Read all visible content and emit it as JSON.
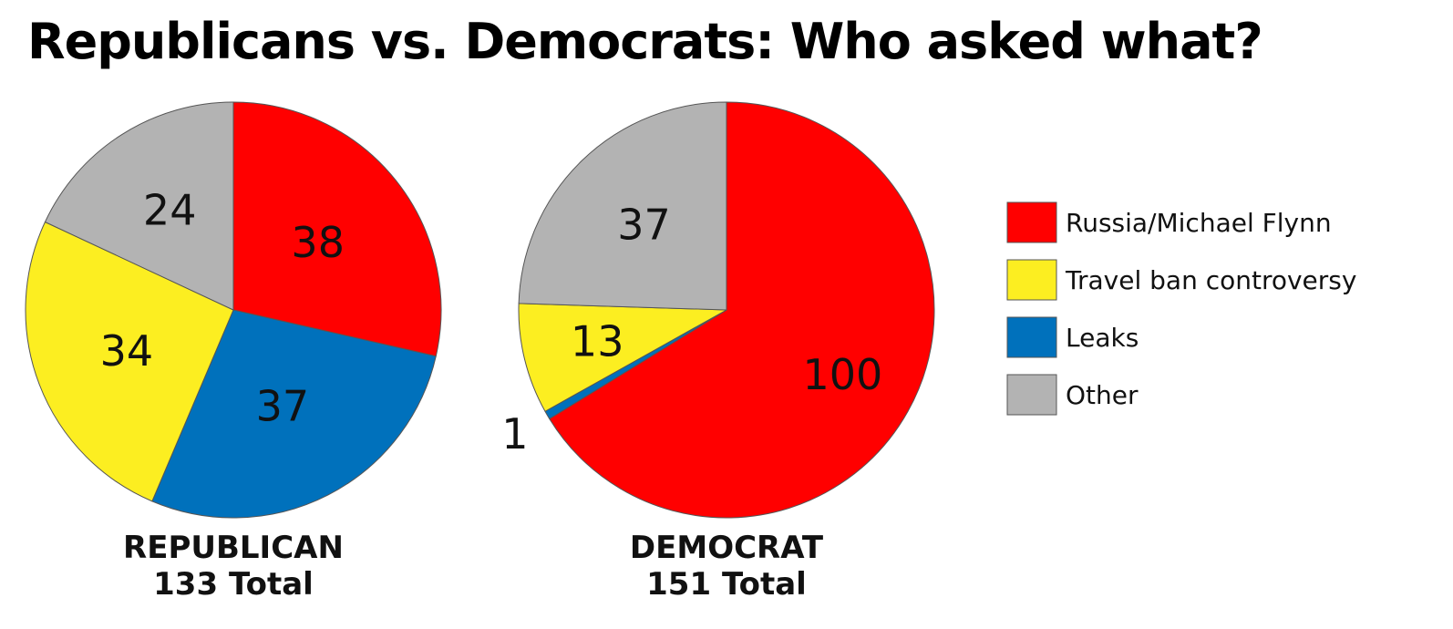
{
  "chart_data": {
    "type": "pie",
    "title": "Republicans vs. Democrats: Who asked what?",
    "legend_position": "right",
    "legend": [
      {
        "name": "Russia/Michael Flynn",
        "color": "#ff0000"
      },
      {
        "name": "Travel ban controversy",
        "color": "#fcee21"
      },
      {
        "name": "Leaks",
        "color": "#0071bc"
      },
      {
        "name": "Other",
        "color": "#b3b3b3"
      }
    ],
    "pies": [
      {
        "name": "REPUBLICAN",
        "total_label": "133 Total",
        "slices": [
          {
            "category": "Russia/Michael Flynn",
            "value": 38,
            "label": "38"
          },
          {
            "category": "Leaks",
            "value": 37,
            "label": "37"
          },
          {
            "category": "Travel ban controversy",
            "value": 34,
            "label": "34"
          },
          {
            "category": "Other",
            "value": 24,
            "label": "24"
          }
        ]
      },
      {
        "name": "DEMOCRAT",
        "total_label": "151 Total",
        "slices": [
          {
            "category": "Russia/Michael Flynn",
            "value": 100,
            "label": "100"
          },
          {
            "category": "Leaks",
            "value": 1,
            "label": "1"
          },
          {
            "category": "Travel ban controversy",
            "value": 13,
            "label": "13"
          },
          {
            "category": "Other",
            "value": 37,
            "label": "37"
          }
        ]
      }
    ]
  }
}
